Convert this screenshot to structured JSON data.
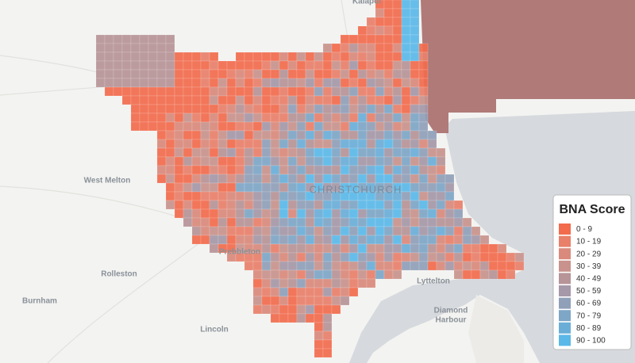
{
  "map": {
    "places": [
      {
        "label": "Kaiapoi"
      },
      {
        "label": "West Melton"
      },
      {
        "label": "CHRISTCHURCH"
      },
      {
        "label": "Prebbleton"
      },
      {
        "label": "Rolleston"
      },
      {
        "label": "Lyttelton"
      },
      {
        "lines": [
          "Diamond",
          "Harbour"
        ]
      },
      {
        "label": "Burnham"
      },
      {
        "label": "Lincoln"
      }
    ],
    "legend": {
      "title": "BNA Score",
      "items": [
        {
          "label": "0 - 9",
          "color": "#f26b4d"
        },
        {
          "label": "10 - 19",
          "color": "#e8806a"
        },
        {
          "label": "20 - 29",
          "color": "#d98a7c"
        },
        {
          "label": "30 - 39",
          "color": "#c9928c"
        },
        {
          "label": "40 - 49",
          "color": "#b69497"
        },
        {
          "label": "50 - 59",
          "color": "#a598a8"
        },
        {
          "label": "60 - 69",
          "color": "#8fa0b8"
        },
        {
          "label": "70 - 79",
          "color": "#7ea6c7"
        },
        {
          "label": "80 - 89",
          "color": "#6aaed8"
        },
        {
          "label": "90 - 100",
          "color": "#5bb8e8"
        }
      ]
    }
  }
}
